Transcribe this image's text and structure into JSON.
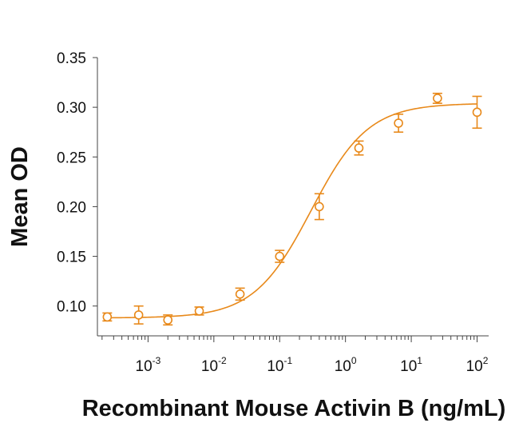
{
  "chart_data": {
    "type": "scatter",
    "xlabel": "Recombinant Mouse Activin B (ng/mL)",
    "ylabel": "Mean OD",
    "x_scale": "log",
    "xlim": [
      0.00017,
      150
    ],
    "ylim": [
      0.07,
      0.35
    ],
    "y_ticks": [
      0.1,
      0.15,
      0.2,
      0.25,
      0.3,
      0.35
    ],
    "y_tick_labels": [
      "0.10",
      "0.15",
      "0.20",
      "0.25",
      "0.30",
      "0.35"
    ],
    "x_ticks": [
      {
        "value": 0.001,
        "base": "10",
        "exponent": "-3"
      },
      {
        "value": 0.01,
        "base": "10",
        "exponent": "-2"
      },
      {
        "value": 0.1,
        "base": "10",
        "exponent": "-1"
      },
      {
        "value": 1,
        "base": "10",
        "exponent": "0"
      },
      {
        "value": 10,
        "base": "10",
        "exponent": "1"
      },
      {
        "value": 100,
        "base": "10",
        "exponent": "2"
      }
    ],
    "series": [
      {
        "color": "#E8891A",
        "marker": "open-circle",
        "points": [
          {
            "x": 0.00024,
            "y": 0.089,
            "err": 0.004
          },
          {
            "x": 0.00072,
            "y": 0.091,
            "err": 0.009
          },
          {
            "x": 0.002,
            "y": 0.086,
            "err": 0.005
          },
          {
            "x": 0.006,
            "y": 0.095,
            "err": 0.004
          },
          {
            "x": 0.025,
            "y": 0.112,
            "err": 0.006
          },
          {
            "x": 0.1,
            "y": 0.15,
            "err": 0.006
          },
          {
            "x": 0.4,
            "y": 0.2,
            "err": 0.013
          },
          {
            "x": 1.6,
            "y": 0.259,
            "err": 0.007
          },
          {
            "x": 6.4,
            "y": 0.284,
            "err": 0.009
          },
          {
            "x": 25,
            "y": 0.309,
            "err": 0.005
          },
          {
            "x": 100,
            "y": 0.295,
            "err": 0.016
          }
        ],
        "fit": {
          "model": "4PL",
          "bottom": 0.088,
          "top": 0.304,
          "ec50": 0.3,
          "hill": 1.0
        }
      }
    ],
    "grid": false,
    "legend": "none"
  }
}
